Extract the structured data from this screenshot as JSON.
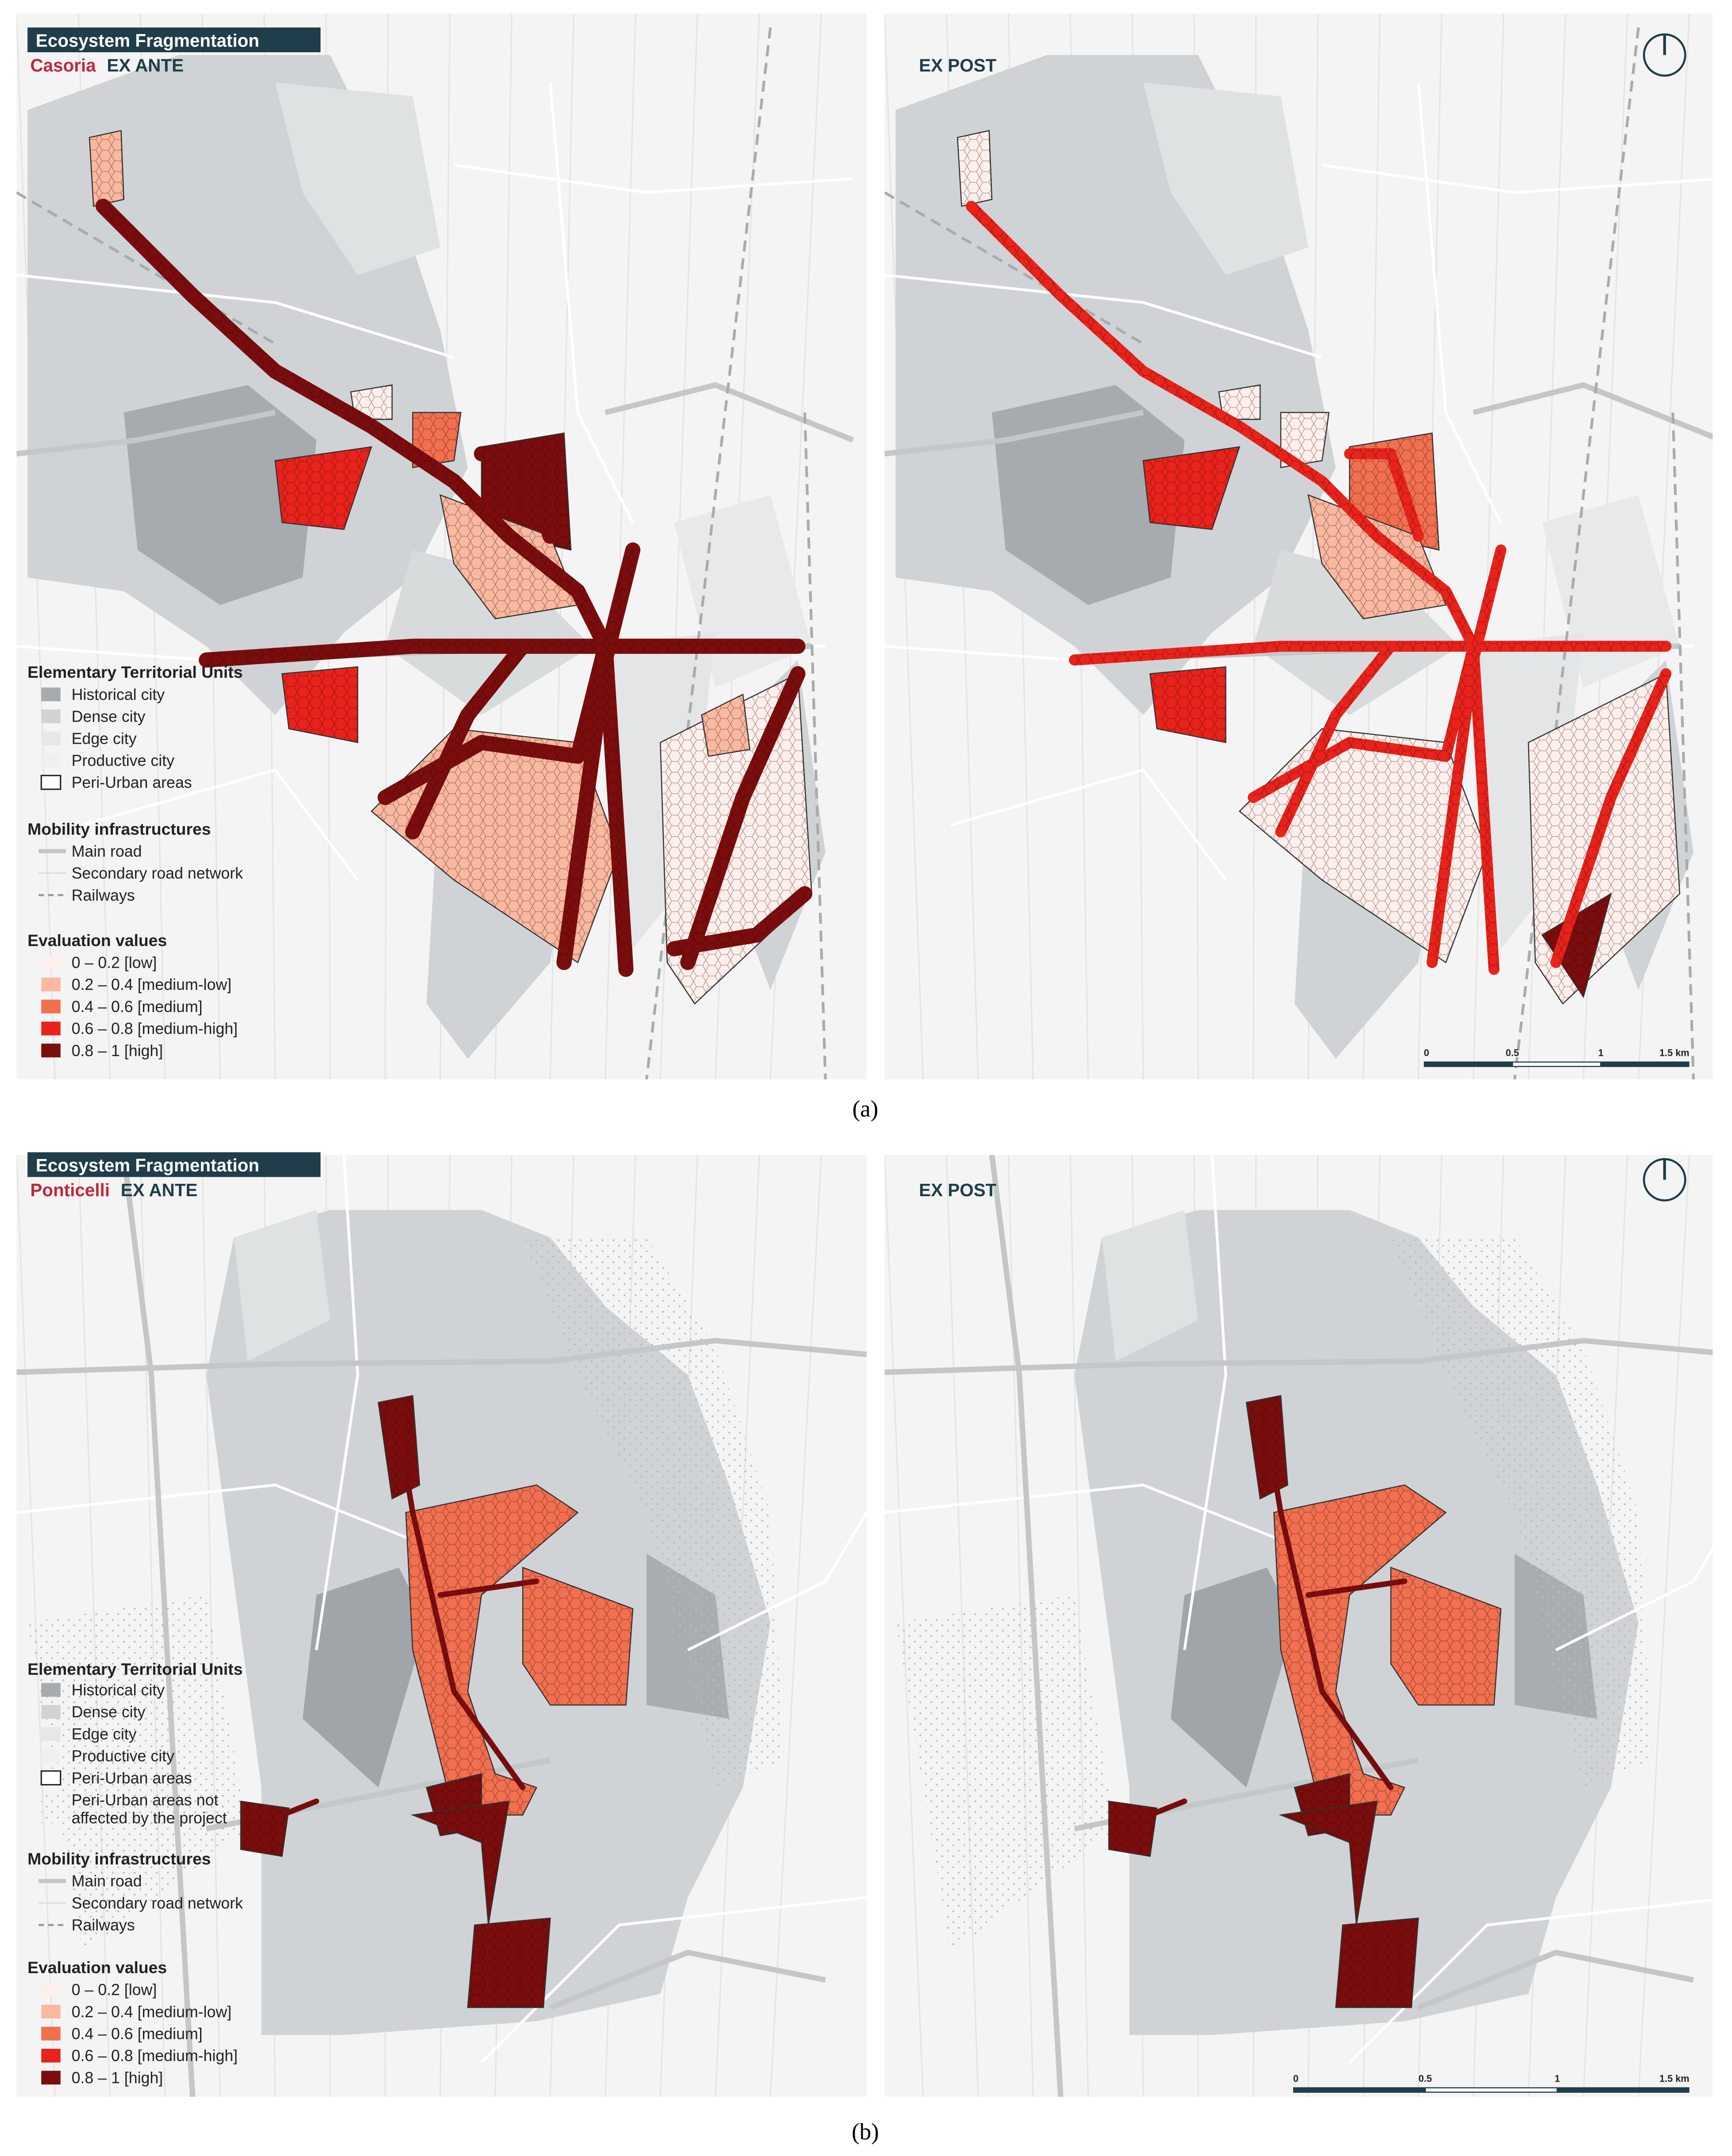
{
  "panels": [
    {
      "title": "Ecosystem Fragmentation",
      "area": "Casoria",
      "before": "EX ANTE",
      "after": "EX POST",
      "caption": "(a)",
      "legend": {
        "units_title": "Elementary Territorial Units",
        "units": [
          "Historical city",
          "Dense city",
          "Edge city",
          "Productive city",
          "Peri-Urban areas"
        ],
        "mobility_title": "Mobility infrastructures",
        "mobility": [
          "Main road",
          "Secondary road network",
          "Railways"
        ],
        "values_title": "Evaluation values",
        "values": [
          "0 – 0.2 [low]",
          "0.2 – 0.4 [medium-low]",
          "0.4 – 0.6 [medium]",
          "0.6 – 0.8 [medium-high]",
          "0.8 – 1 [high]"
        ]
      },
      "scale": [
        "0",
        "0.5",
        "1",
        "1.5 km"
      ]
    },
    {
      "title": "Ecosystem Fragmentation",
      "area": "Ponticelli",
      "before": "EX ANTE",
      "after": "EX POST",
      "caption": "(b)",
      "legend": {
        "units_title": "Elementary Territorial Units",
        "units": [
          "Historical city",
          "Dense city",
          "Edge city",
          "Productive city",
          "Peri-Urban areas"
        ],
        "extra_unit": [
          "Peri-Urban areas not",
          "affected by the project"
        ],
        "mobility_title": "Mobility infrastructures",
        "mobility": [
          "Main road",
          "Secondary road network",
          "Railways"
        ],
        "values_title": "Evaluation values",
        "values": [
          "0 – 0.2 [low]",
          "0.2 – 0.4 [medium-low]",
          "0.4 – 0.6 [medium]",
          "0.6 – 0.8 [medium-high]",
          "0.8 – 1 [high]"
        ]
      },
      "scale": [
        "0",
        "0.5",
        "1",
        "1.5 km"
      ]
    }
  ]
}
